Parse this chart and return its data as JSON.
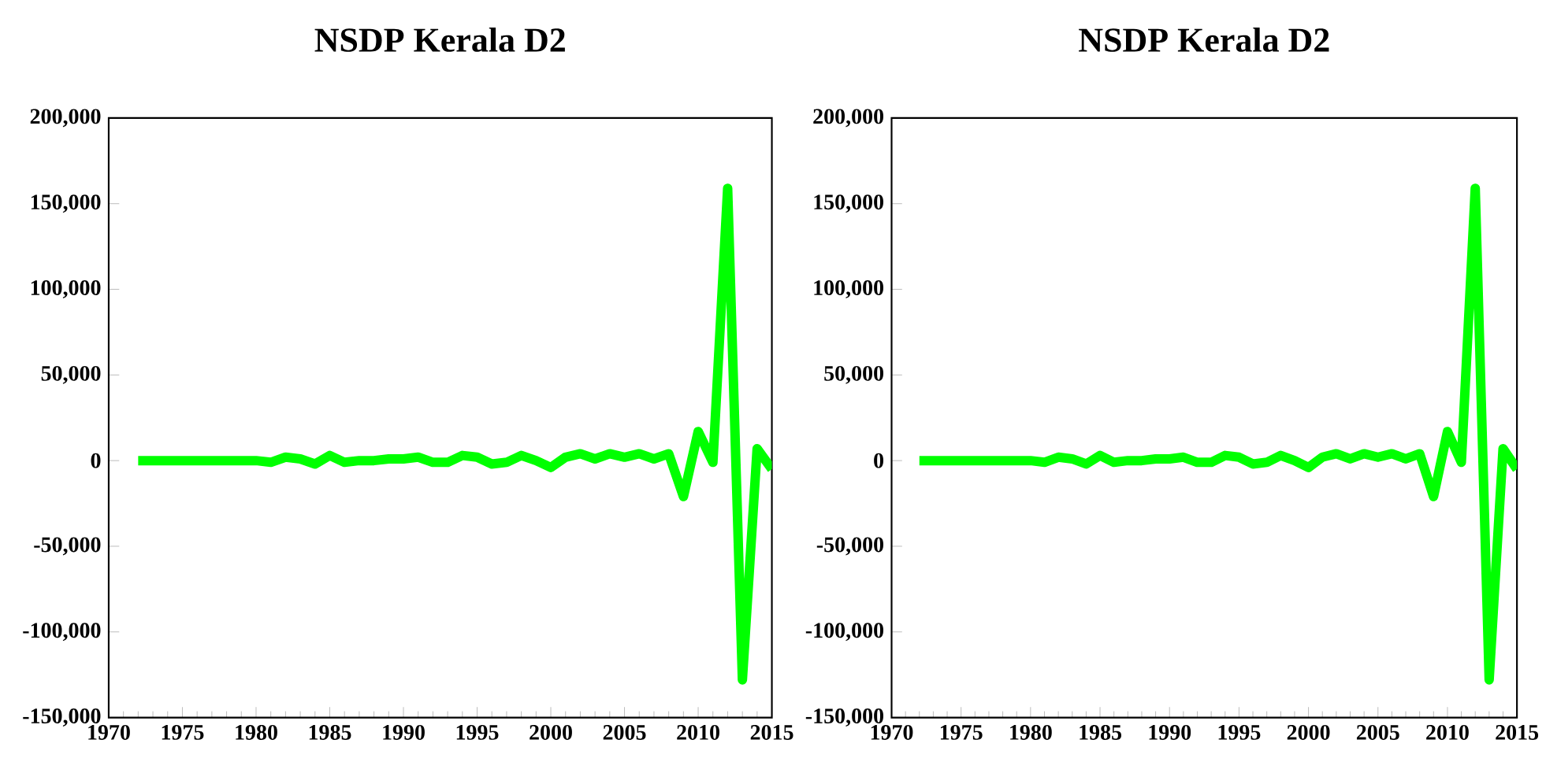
{
  "chart_data": [
    {
      "type": "line",
      "title": "NSDP Kerala D2",
      "x": [
        1972,
        1973,
        1974,
        1975,
        1976,
        1977,
        1978,
        1979,
        1980,
        1981,
        1982,
        1983,
        1984,
        1985,
        1986,
        1987,
        1988,
        1989,
        1990,
        1991,
        1992,
        1993,
        1994,
        1995,
        1996,
        1997,
        1998,
        1999,
        2000,
        2001,
        2002,
        2003,
        2004,
        2005,
        2006,
        2007,
        2008,
        2009,
        2010,
        2011,
        2012,
        2013,
        2014,
        2015
      ],
      "series": [
        {
          "color": "#00ff00",
          "values": [
            0,
            0,
            0,
            0,
            0,
            0,
            0,
            0,
            0,
            -1000,
            2000,
            1000,
            -2000,
            3000,
            -1000,
            0,
            0,
            1000,
            1000,
            2000,
            -1000,
            -1000,
            3000,
            2000,
            -2000,
            -1000,
            3000,
            0,
            -4000,
            2000,
            4000,
            1000,
            4000,
            2000,
            4000,
            1000,
            4000,
            -21000,
            17000,
            -1000,
            159000,
            -128000,
            7000,
            -5000
          ]
        }
      ],
      "xlim": [
        1970,
        2015
      ],
      "xticks": [
        1970,
        1975,
        1980,
        1985,
        1990,
        1995,
        2000,
        2005,
        2010,
        2015
      ],
      "ylim": [
        -150000,
        200000
      ],
      "yticks": [
        {
          "value": -150000,
          "label": "-150,000"
        },
        {
          "value": -100000,
          "label": "-100,000"
        },
        {
          "value": -50000,
          "label": "-50,000"
        },
        {
          "value": 0,
          "label": "0"
        },
        {
          "value": 50000,
          "label": "50,000"
        },
        {
          "value": 100000,
          "label": "100,000"
        },
        {
          "value": 150000,
          "label": "150,000"
        },
        {
          "value": 200000,
          "label": "200,000"
        }
      ],
      "line_style": "solid",
      "marker": "none"
    },
    {
      "type": "line",
      "title": "NSDP Kerala D2",
      "x": [
        1972,
        1973,
        1974,
        1975,
        1976,
        1977,
        1978,
        1979,
        1980,
        1981,
        1982,
        1983,
        1984,
        1985,
        1986,
        1987,
        1988,
        1989,
        1990,
        1991,
        1992,
        1993,
        1994,
        1995,
        1996,
        1997,
        1998,
        1999,
        2000,
        2001,
        2002,
        2003,
        2004,
        2005,
        2006,
        2007,
        2008,
        2009,
        2010,
        2011,
        2012,
        2013,
        2014,
        2015
      ],
      "series": [
        {
          "color": "#00ff00",
          "values": [
            0,
            0,
            0,
            0,
            0,
            0,
            0,
            0,
            0,
            -1000,
            2000,
            1000,
            -2000,
            3000,
            -1000,
            0,
            0,
            1000,
            1000,
            2000,
            -1000,
            -1000,
            3000,
            2000,
            -2000,
            -1000,
            3000,
            0,
            -4000,
            2000,
            4000,
            1000,
            4000,
            2000,
            4000,
            1000,
            4000,
            -21000,
            17000,
            -1000,
            159000,
            -128000,
            7000,
            -5000
          ]
        }
      ],
      "xlim": [
        1970,
        2015
      ],
      "xticks": [
        1970,
        1975,
        1980,
        1985,
        1990,
        1995,
        2000,
        2005,
        2010,
        2015
      ],
      "ylim": [
        -150000,
        200000
      ],
      "yticks": [
        {
          "value": -150000,
          "label": "-150,000"
        },
        {
          "value": -100000,
          "label": "-100,000"
        },
        {
          "value": -50000,
          "label": "-50,000"
        },
        {
          "value": 0,
          "label": "0"
        },
        {
          "value": 50000,
          "label": "50,000"
        },
        {
          "value": 100000,
          "label": "100,000"
        },
        {
          "value": 150000,
          "label": "150,000"
        },
        {
          "value": 200000,
          "label": "200,000"
        }
      ],
      "line_style": "solid",
      "marker": "none"
    }
  ]
}
